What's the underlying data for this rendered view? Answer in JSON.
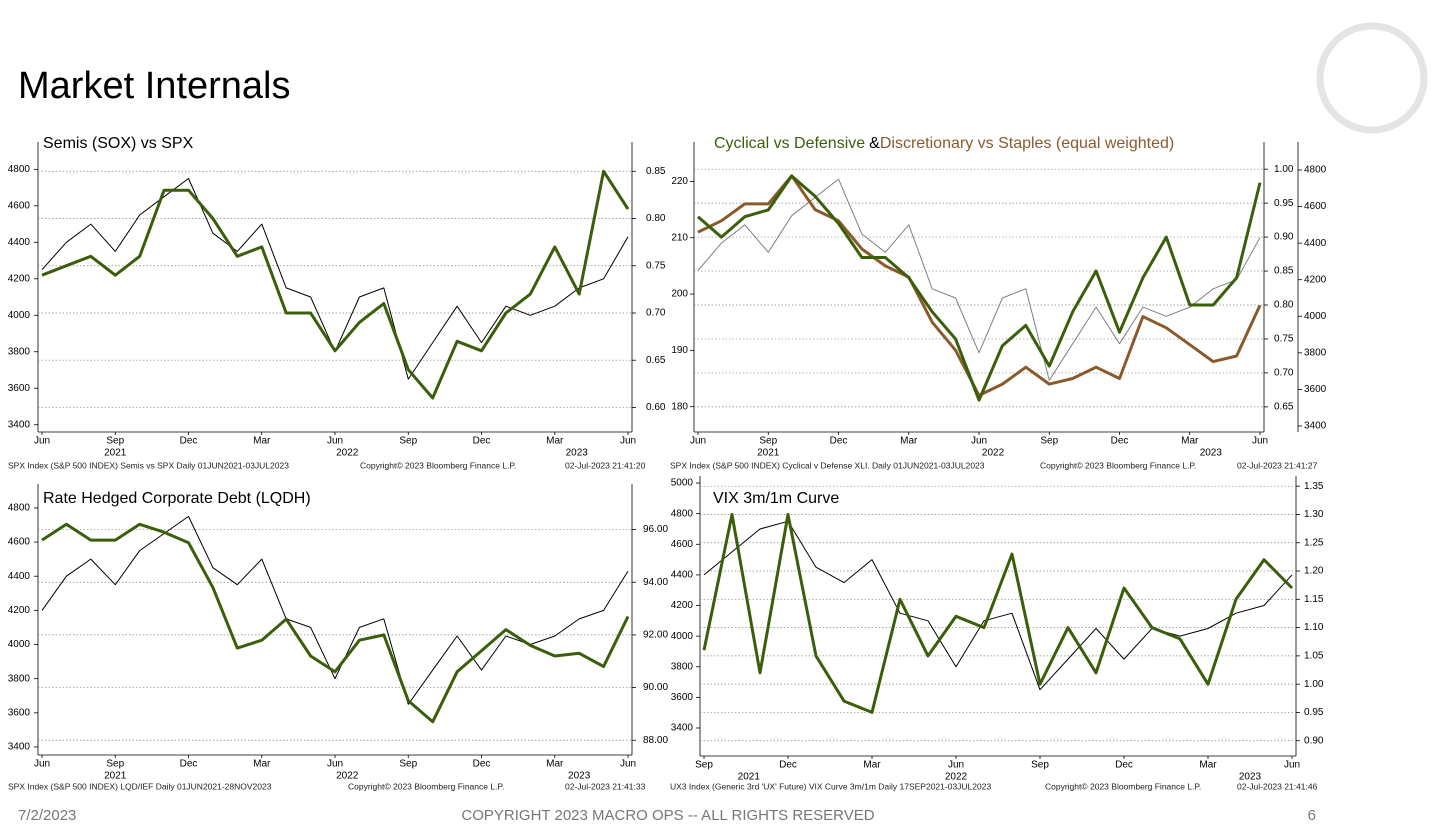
{
  "header": {
    "title": "Market Internals"
  },
  "footer": {
    "date": "7/2/2023",
    "copyright": "COPYRIGHT 2023 MACRO OPS -- ALL RIGHTS RESERVED",
    "page": "6"
  },
  "chart_data": [
    {
      "type": "line",
      "title": "Semis (SOX) vs SPX",
      "categories": [
        "Jun",
        null,
        null,
        "Sep",
        null,
        null,
        "Dec",
        null,
        null,
        "Mar",
        null,
        null,
        "Jun",
        null,
        null,
        "Sep",
        null,
        null,
        "Dec",
        null,
        null,
        "Mar",
        null,
        null,
        "Jun"
      ],
      "year_ticks": [
        {
          "value": 3,
          "label": "2021"
        },
        {
          "value": 12.5,
          "label": "2022"
        },
        {
          "value": 21.9,
          "label": "2023"
        }
      ],
      "ylim": [
        3360,
        4950
      ],
      "yticks": [
        3400,
        3600,
        3800,
        4000,
        4200,
        4400,
        4600,
        4800
      ],
      "y2lim": [
        0.574,
        0.881
      ],
      "y2ticks": [
        {
          "value": 0.6,
          "label": "0.60"
        },
        0.65,
        {
          "value": 0.7,
          "label": "0.70"
        },
        0.75,
        {
          "value": 0.8,
          "label": "0.80"
        },
        0.85
      ],
      "grid": true,
      "series": [
        {
          "color": "#000000",
          "axis": "y",
          "values": [
            4250,
            4400,
            4500,
            4350,
            4550,
            4650,
            4750,
            4450,
            4350,
            4500,
            4150,
            4100,
            3800,
            4100,
            4150,
            3650,
            3850,
            4050,
            3850,
            4050,
            4000,
            4050,
            4150,
            4200,
            4430
          ]
        },
        {
          "color": "#3b5e0b",
          "axis": "y2",
          "values": [
            0.74,
            0.75,
            0.76,
            0.74,
            0.76,
            0.83,
            0.83,
            0.8,
            0.76,
            0.77,
            0.7,
            0.7,
            0.66,
            0.69,
            0.71,
            0.64,
            0.61,
            0.67,
            0.66,
            0.7,
            0.72,
            0.77,
            0.72,
            0.85,
            0.81
          ]
        }
      ],
      "source": [
        "SPX Index (S&P 500 INDEX) Semis vs SPX  Daily 01JUN2021-03JUL2023",
        "Copyright© 2023 Bloomberg Finance L.P.",
        "02-Jul-2023 21:41:20"
      ]
    },
    {
      "type": "line",
      "legend_joiner": "&",
      "categories": [
        "Jun",
        null,
        null,
        "Sep",
        null,
        null,
        "Dec",
        null,
        null,
        "Mar",
        null,
        null,
        "Jun",
        null,
        null,
        "Sep",
        null,
        null,
        "Dec",
        null,
        null,
        "Mar",
        null,
        null,
        "Jun"
      ],
      "year_ticks": [
        {
          "value": 3,
          "label": "2021"
        },
        {
          "value": 12.6,
          "label": "2022"
        },
        {
          "value": 21.9,
          "label": "2023"
        }
      ],
      "ylim": [
        175.5,
        227
      ],
      "yticks": [
        180,
        190,
        200,
        210,
        220
      ],
      "y2lim": [
        0.613,
        1.04
      ],
      "y2ticks": [
        0.65,
        {
          "value": 0.7,
          "label": "0.70"
        },
        0.75,
        {
          "value": 0.8,
          "label": "0.80"
        },
        0.85,
        {
          "value": 0.9,
          "label": "0.90"
        },
        0.95,
        {
          "value": 1,
          "label": "1.00"
        }
      ],
      "y3lim": [
        3367,
        4953
      ],
      "y3ticks": [
        3400,
        3600,
        3800,
        4000,
        4200,
        4400,
        4600,
        4800
      ],
      "grid": true,
      "series": [
        {
          "color": "#808080",
          "axis": "y3",
          "values": [
            4250,
            4400,
            4500,
            4350,
            4550,
            4650,
            4750,
            4450,
            4350,
            4500,
            4150,
            4100,
            3800,
            4100,
            4150,
            3650,
            3850,
            4050,
            3850,
            4050,
            4000,
            4050,
            4150,
            4200,
            4430
          ]
        },
        {
          "name": "Discretionary vs Staples (equal weighted)",
          "color": "#8b5a2b",
          "axis": "y",
          "values": [
            211,
            213,
            216,
            216,
            221,
            215,
            213,
            208,
            205,
            203,
            195,
            190,
            182,
            184,
            187,
            184,
            185,
            187,
            185,
            196,
            194,
            191,
            188,
            189,
            198
          ]
        },
        {
          "name": "Cyclical vs Defensive",
          "color": "#3b5e0b",
          "axis": "y2",
          "values": [
            0.93,
            0.9,
            0.93,
            0.94,
            0.99,
            0.96,
            0.92,
            0.87,
            0.87,
            0.84,
            0.79,
            0.75,
            0.66,
            0.74,
            0.77,
            0.71,
            0.79,
            0.85,
            0.76,
            0.84,
            0.9,
            0.8,
            0.8,
            0.84,
            0.98
          ]
        }
      ],
      "source": [
        "SPX Index (S&P 500 INDEX) Cyclical v Defense XLI.  Daily 01JUN2021-03JUL2023",
        "Copyright© 2023 Bloomberg Finance L.P.",
        "02-Jul-2023 21:41:27"
      ]
    },
    {
      "type": "line",
      "title": "Rate Hedged Corporate Debt (LQDH)",
      "categories": [
        "Jun",
        null,
        null,
        "Sep",
        null,
        null,
        "Dec",
        null,
        null,
        "Mar",
        null,
        null,
        "Jun",
        null,
        null,
        "Sep",
        null,
        null,
        "Dec",
        null,
        null,
        "Mar",
        null,
        null,
        "Jun"
      ],
      "year_ticks": [
        {
          "value": 3,
          "label": "2021"
        },
        {
          "value": 12.5,
          "label": "2022"
        },
        {
          "value": 22,
          "label": "2023"
        }
      ],
      "ylim": [
        3353,
        4940
      ],
      "yticks": [
        3400,
        3600,
        3800,
        4000,
        4200,
        4400,
        4600,
        4800
      ],
      "y2lim": [
        87.44,
        97.73
      ],
      "y2ticks": [
        {
          "value": 88,
          "label": "88.00"
        },
        {
          "value": 90,
          "label": "90.00"
        },
        {
          "value": 92,
          "label": "92.00"
        },
        {
          "value": 94,
          "label": "94.00"
        },
        {
          "value": 96,
          "label": "96.00"
        }
      ],
      "grid": true,
      "series": [
        {
          "color": "#000000",
          "axis": "y",
          "values": [
            4200,
            4400,
            4500,
            4350,
            4550,
            4650,
            4750,
            4450,
            4350,
            4500,
            4150,
            4100,
            3800,
            4100,
            4150,
            3650,
            3850,
            4050,
            3850,
            4050,
            4000,
            4050,
            4150,
            4200,
            4430
          ]
        },
        {
          "color": "#3b5e0b",
          "axis": "y2",
          "values": [
            95.6,
            96.2,
            95.6,
            95.6,
            96.2,
            95.9,
            95.5,
            93.8,
            91.5,
            91.8,
            92.6,
            91.2,
            90.6,
            91.8,
            92.0,
            89.5,
            88.7,
            90.6,
            91.4,
            92.2,
            91.6,
            91.2,
            91.3,
            90.8,
            92.7
          ]
        }
      ],
      "source": [
        "SPX Index (S&P 500 INDEX) LQD/IEF  Daily 01JUN2021-28NOV2023",
        "Copyright© 2023 Bloomberg Finance L.P.",
        "02-Jul-2023 21:41:33"
      ]
    },
    {
      "type": "line",
      "title": "VIX 3m/1m Curve",
      "categories": [
        "Sep",
        null,
        null,
        "Dec",
        null,
        null,
        "Mar",
        null,
        null,
        "Jun",
        null,
        null,
        "Sep",
        null,
        null,
        "Dec",
        null,
        null,
        "Mar",
        null,
        null,
        "Jun"
      ],
      "year_ticks": [
        {
          "value": 1.6,
          "label": "2021"
        },
        {
          "value": 9,
          "label": "2022"
        },
        {
          "value": 19.5,
          "label": "2023"
        }
      ],
      "ylim": [
        3217,
        5046
      ],
      "yticks": [
        3400,
        3600,
        3800,
        4000,
        4200,
        4400,
        4600,
        4800,
        5000
      ],
      "y2lim": [
        0.873,
        1.368
      ],
      "y2ticks": [
        {
          "value": 0.9,
          "label": "0.90"
        },
        0.95,
        {
          "value": 1,
          "label": "1.00"
        },
        1.05,
        {
          "value": 1.1,
          "label": "1.10"
        },
        1.15,
        {
          "value": 1.2,
          "label": "1.20"
        },
        1.25,
        {
          "value": 1.3,
          "label": "1.30"
        },
        1.35
      ],
      "grid": true,
      "series": [
        {
          "color": "#000000",
          "axis": "y",
          "values": [
            4400,
            4550,
            4700,
            4750,
            4450,
            4350,
            4500,
            4150,
            4100,
            3800,
            4100,
            4150,
            3650,
            3850,
            4050,
            3850,
            4050,
            4000,
            4050,
            4150,
            4200,
            4400
          ]
        },
        {
          "color": "#3b5e0b",
          "axis": "y2",
          "values": [
            1.06,
            1.3,
            1.02,
            1.3,
            1.05,
            0.97,
            0.95,
            1.15,
            1.05,
            1.12,
            1.1,
            1.23,
            1.0,
            1.1,
            1.02,
            1.17,
            1.1,
            1.08,
            1.0,
            1.15,
            1.22,
            1.17
          ]
        }
      ],
      "source": [
        "UX3 Index (Generic 3rd 'UX' Future) VIX Curve 3m/1m  Daily 17SEP2021-03JUL2023",
        "Copyright© 2023 Bloomberg Finance L.P.",
        "02-Jul-2023 21:41:46"
      ]
    }
  ]
}
